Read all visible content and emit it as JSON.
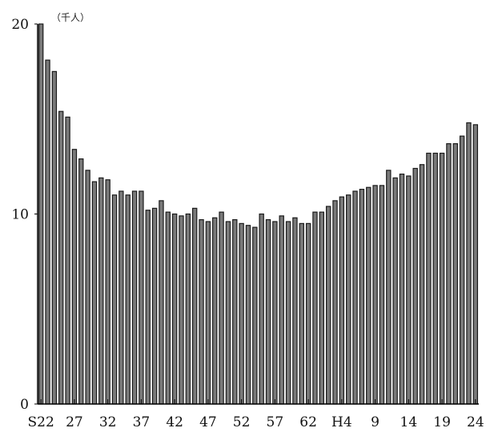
{
  "chart_data": {
    "type": "bar",
    "unit_label": "（千人）",
    "ylim": [
      0,
      20
    ],
    "y_ticks": [
      "0",
      "10",
      "20"
    ],
    "x_tick_labels": [
      "S22",
      "27",
      "32",
      "37",
      "42",
      "47",
      "52",
      "57",
      "62",
      "H4",
      "9",
      "14",
      "19",
      "24"
    ],
    "grid": false,
    "legend": "none",
    "bar_fill": "#7a7a7a",
    "bar_stroke": "#1a1a1a",
    "axis_color": "#000000",
    "categories": [
      "S22",
      "S23",
      "S24",
      "S25",
      "S26",
      "S27",
      "S28",
      "S29",
      "S30",
      "S31",
      "S32",
      "S33",
      "S34",
      "S35",
      "S36",
      "S37",
      "S38",
      "S39",
      "S40",
      "S41",
      "S42",
      "S43",
      "S44",
      "S45",
      "S46",
      "S47",
      "S48",
      "S49",
      "S50",
      "S51",
      "S52",
      "S53",
      "S54",
      "S55",
      "S56",
      "S57",
      "S58",
      "S59",
      "S60",
      "S61",
      "S62",
      "S63",
      "H1",
      "H2",
      "H3",
      "H4",
      "H5",
      "H6",
      "H7",
      "H8",
      "H9",
      "H10",
      "H11",
      "H12",
      "H13",
      "H14",
      "H15",
      "H16",
      "H17",
      "H18",
      "H19",
      "H20",
      "H21",
      "H22",
      "H23",
      "H24"
    ],
    "values": [
      20.0,
      18.1,
      17.5,
      15.4,
      15.1,
      13.4,
      12.9,
      12.3,
      11.7,
      11.9,
      11.8,
      11.0,
      11.2,
      11.0,
      11.2,
      11.2,
      10.2,
      10.3,
      10.7,
      10.1,
      10.0,
      9.9,
      10.0,
      10.3,
      9.7,
      9.6,
      9.8,
      10.1,
      9.6,
      9.7,
      9.5,
      9.4,
      9.3,
      10.0,
      9.7,
      9.6,
      9.9,
      9.6,
      9.8,
      9.5,
      9.5,
      10.1,
      10.1,
      10.4,
      10.7,
      10.9,
      11.0,
      11.2,
      11.3,
      11.4,
      11.5,
      11.5,
      12.3,
      11.9,
      12.1,
      12.0,
      12.4,
      12.6,
      13.2,
      13.2,
      13.2,
      13.7,
      13.7,
      14.1,
      14.8,
      14.7
    ]
  }
}
